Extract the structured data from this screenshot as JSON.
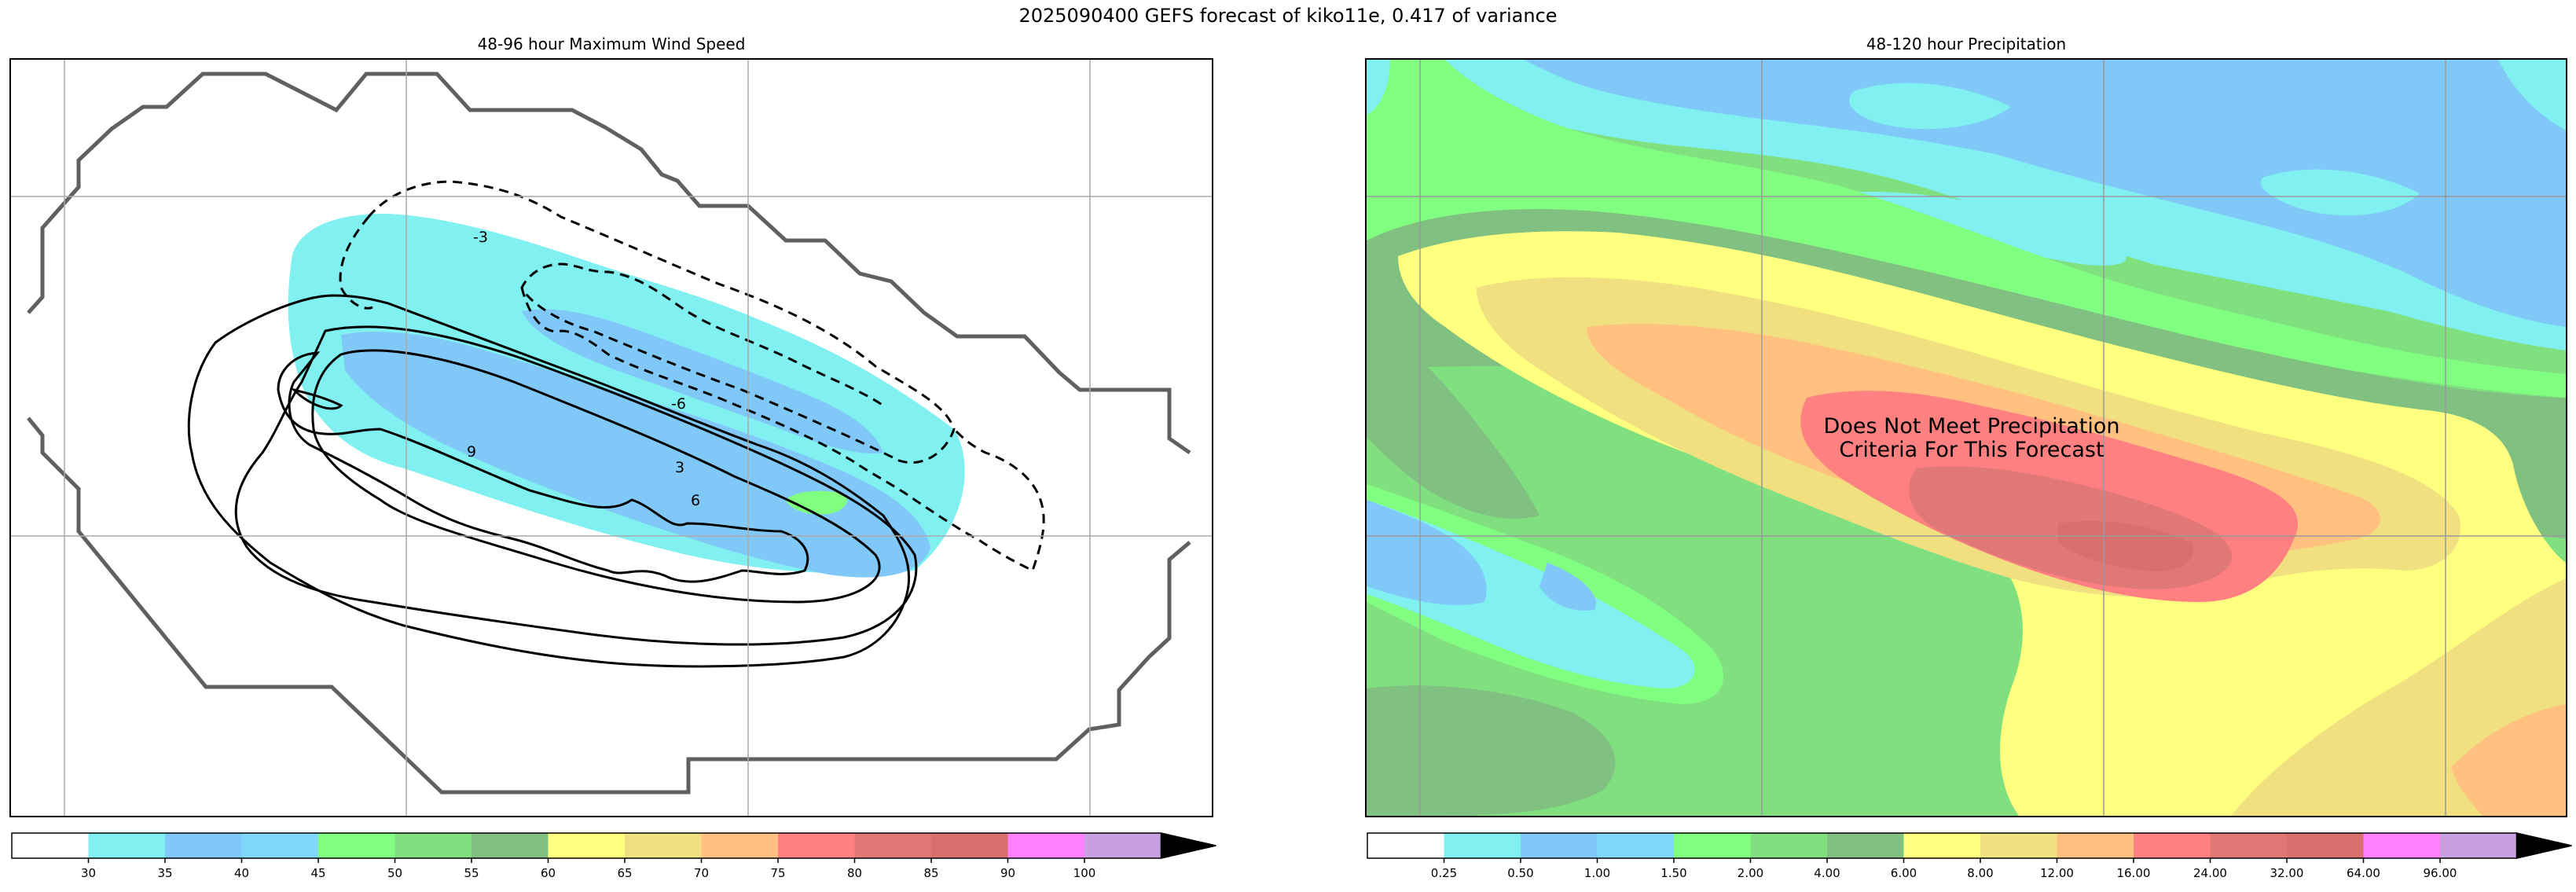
{
  "suptitle": "2025090400 GEFS forecast of kiko11e, 0.417 of variance",
  "colors": {
    "c_white": "#ffffff",
    "c_cyan": "#80f0f0",
    "c_blue1": "#80c8f8",
    "c_blue2": "#80d8f8",
    "c_green1": "#80ff80",
    "c_green2": "#80e080",
    "c_green3": "#80c080",
    "c_yellow": "#ffff80",
    "c_khaki": "#f0e080",
    "c_orange": "#ffc080",
    "c_red": "#ff8080",
    "c_darkred": "#e07878",
    "c_brown": "#d87070",
    "c_magenta": "#ff80ff",
    "c_purple": "#c8a0e0",
    "outline": "#606060"
  },
  "chart_data": [
    {
      "type": "heatmap",
      "title": "48-96 hour Maximum Wind Speed",
      "grid": true,
      "filled_levels": [
        30,
        35,
        40,
        45,
        50,
        55,
        60,
        65,
        70,
        75,
        80,
        85,
        90,
        100
      ],
      "colorbar": {
        "tick_labels": [
          "30",
          "35",
          "40",
          "45",
          "50",
          "55",
          "60",
          "65",
          "70",
          "75",
          "80",
          "85",
          "90",
          "100"
        ],
        "extend": "max"
      },
      "contour_lines": {
        "solid_labels": [
          "9",
          "3",
          "6"
        ],
        "dashed_labels": [
          "-3",
          "-6"
        ]
      }
    },
    {
      "type": "heatmap",
      "title": "48-120 hour Precipitation",
      "grid": true,
      "filled_levels": [
        0.25,
        0.5,
        1.0,
        1.5,
        2.0,
        4.0,
        6.0,
        8.0,
        12.0,
        16.0,
        24.0,
        32.0,
        64.0,
        96.0
      ],
      "colorbar": {
        "tick_labels": [
          "0.25",
          "0.50",
          "1.00",
          "1.50",
          "2.00",
          "4.00",
          "6.00",
          "8.00",
          "12.00",
          "16.00",
          "24.00",
          "32.00",
          "64.00",
          "96.00"
        ],
        "extend": "max"
      },
      "annotation": "Does Not Meet Precipitation\nCriteria For This Forecast"
    }
  ]
}
